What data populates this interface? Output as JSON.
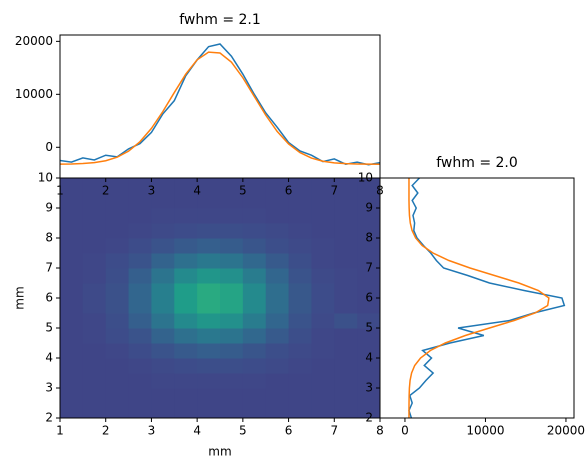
{
  "chart_data": [
    {
      "type": "line",
      "title": "fwhm = 2.1",
      "x": [
        1,
        1.25,
        1.5,
        1.75,
        2,
        2.25,
        2.5,
        2.75,
        3,
        3.25,
        3.5,
        3.75,
        4,
        4.25,
        4.5,
        4.75,
        5,
        5.25,
        5.5,
        5.75,
        6,
        6.25,
        6.5,
        6.75,
        7,
        7.25,
        7.5,
        7.75,
        8
      ],
      "series": [
        {
          "color": "#1f77b4",
          "values": [
            -2500,
            -2800,
            -2000,
            -2400,
            -1500,
            -1800,
            -300,
            700,
            2800,
            6300,
            8800,
            13500,
            16500,
            19000,
            19500,
            17200,
            13800,
            10000,
            6500,
            3800,
            900,
            -700,
            -1500,
            -2700,
            -2200,
            -3200,
            -2800,
            -3300,
            -2900
          ]
        },
        {
          "color": "#ff7f0e",
          "values": [
            -3180,
            -3150,
            -3070,
            -2900,
            -2540,
            -1870,
            -730,
            1060,
            3570,
            6750,
            10330,
            13800,
            16520,
            17970,
            17800,
            16080,
            13130,
            9600,
            6070,
            3000,
            640,
            -1000,
            -2040,
            -2630,
            -2940,
            -3090,
            -3160,
            -3190,
            -3200
          ]
        }
      ],
      "xlim": [
        1,
        8
      ],
      "xticks": [
        1,
        2,
        3,
        4,
        5,
        6,
        7,
        8
      ],
      "ylim": [
        -5800,
        21200
      ],
      "yticks": [
        0,
        10000,
        20000
      ]
    },
    {
      "type": "heatmap",
      "xlabel": "mm",
      "ylabel": "mm",
      "xlim": [
        1,
        8
      ],
      "xticks": [
        1,
        2,
        3,
        4,
        5,
        6,
        7,
        8
      ],
      "ylim": [
        2,
        10
      ],
      "yticks": [
        2,
        3,
        4,
        5,
        6,
        7,
        8,
        9,
        10
      ],
      "zlim": [
        -10,
        110
      ],
      "colormap": [
        "#440154",
        "#482878",
        "#3e4989",
        "#31688e",
        "#26828e",
        "#1f9e89",
        "#35b779",
        "#6ece58",
        "#b5de2b",
        "#fde725"
      ],
      "z": [
        [
          15,
          15,
          15,
          15,
          15,
          15,
          15,
          15,
          15,
          15,
          15,
          15,
          15,
          15
        ],
        [
          15,
          15,
          15,
          15,
          15,
          15,
          15,
          15,
          15,
          15,
          15,
          15,
          15,
          15
        ],
        [
          15,
          15,
          15,
          15,
          16,
          16,
          16,
          16,
          16,
          15,
          15,
          15,
          15,
          15
        ],
        [
          15,
          15,
          15,
          16,
          17,
          18,
          19,
          19,
          18,
          17,
          16,
          15,
          15,
          15
        ],
        [
          15,
          15,
          16,
          18,
          21,
          24,
          26,
          25,
          22,
          19,
          17,
          16,
          15,
          15
        ],
        [
          15,
          16,
          18,
          21,
          28,
          34,
          38,
          36,
          30,
          24,
          19,
          16,
          15,
          15
        ],
        [
          15,
          16,
          19,
          26,
          36,
          47,
          53,
          50,
          40,
          29,
          21,
          17,
          20,
          17
        ],
        [
          15,
          17,
          20,
          29,
          42,
          56,
          63,
          60,
          47,
          33,
          23,
          18,
          16,
          15
        ],
        [
          15,
          17,
          20,
          29,
          42,
          56,
          63,
          60,
          47,
          33,
          23,
          18,
          16,
          15
        ],
        [
          15,
          16,
          19,
          26,
          36,
          47,
          53,
          50,
          40,
          29,
          21,
          17,
          16,
          15
        ],
        [
          15,
          16,
          18,
          21,
          28,
          34,
          38,
          36,
          30,
          24,
          19,
          16,
          15,
          15
        ],
        [
          15,
          15,
          16,
          18,
          21,
          24,
          26,
          25,
          22,
          19,
          17,
          16,
          15,
          15
        ],
        [
          15,
          15,
          15,
          16,
          17,
          18,
          19,
          19,
          18,
          17,
          16,
          15,
          15,
          15
        ],
        [
          15,
          15,
          15,
          15,
          16,
          16,
          16,
          16,
          16,
          15,
          15,
          15,
          15,
          15
        ],
        [
          15,
          15,
          15,
          15,
          15,
          15,
          15,
          15,
          15,
          15,
          15,
          15,
          15,
          15
        ],
        [
          15,
          15,
          15,
          15,
          15,
          15,
          15,
          15,
          15,
          15,
          15,
          15,
          15,
          15
        ]
      ]
    },
    {
      "type": "line",
      "title": "fwhm = 2.0",
      "y": [
        2,
        2.25,
        2.5,
        2.75,
        3,
        3.25,
        3.5,
        3.75,
        4,
        4.25,
        4.5,
        4.75,
        5,
        5.25,
        5.5,
        5.75,
        6,
        6.25,
        6.5,
        6.75,
        7,
        7.25,
        7.5,
        7.75,
        8,
        8.25,
        8.5,
        8.75,
        9,
        9.25,
        9.5,
        9.75,
        10
      ],
      "series": [
        {
          "color": "#1f77b4",
          "values": [
            800,
            500,
            900,
            600,
            1800,
            2600,
            3500,
            2400,
            3300,
            2200,
            5600,
            9800,
            6600,
            13000,
            16000,
            19800,
            19500,
            14800,
            10500,
            7800,
            4800,
            3900,
            3200,
            2300,
            1500,
            1100,
            1200,
            1000,
            1400,
            900,
            1600,
            900,
            1800
          ]
        },
        {
          "color": "#ff7f0e",
          "values": [
            500,
            500,
            506,
            520,
            552,
            636,
            824,
            1210,
            1935,
            3160,
            5010,
            7500,
            10500,
            13570,
            16160,
            17730,
            17880,
            16580,
            14150,
            11120,
            8080,
            5460,
            3480,
            2140,
            1330,
            885,
            663,
            560,
            520,
            500,
            500,
            500,
            500
          ]
        }
      ],
      "xlim": [
        -3100,
        21000
      ],
      "xticks": [
        0,
        10000,
        20000
      ],
      "ylim": [
        2,
        10
      ],
      "yticks": [
        2,
        3,
        4,
        5,
        6,
        7,
        8,
        9,
        10
      ]
    }
  ]
}
